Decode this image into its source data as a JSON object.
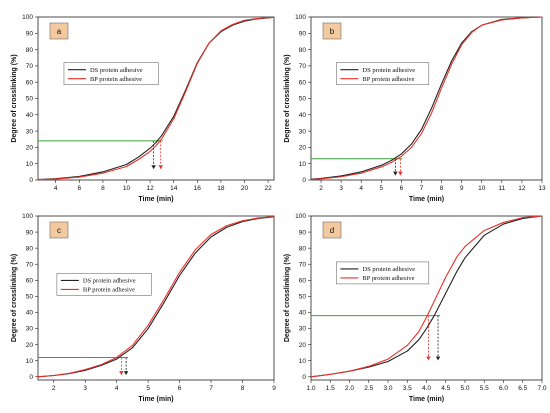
{
  "chart_data": [
    {
      "type": "line",
      "panel_label": "a",
      "xlabel": "Time  (min)",
      "ylabel": "Degree of crosslinking  (%)",
      "xlim": [
        2.5,
        22.5
      ],
      "ylim": [
        0,
        100
      ],
      "xticks": [
        4,
        6,
        8,
        10,
        12,
        14,
        16,
        18,
        20,
        22
      ],
      "yticks": [
        0,
        10,
        20,
        30,
        40,
        50,
        60,
        70,
        80,
        90,
        100
      ],
      "legend_position": "upper-left",
      "grid": false,
      "series": [
        {
          "name": "DS protein adhesive",
          "color": "#222222",
          "x": [
            2.5,
            4,
            6,
            8,
            10,
            11,
            12,
            12.5,
            13,
            14,
            15,
            16,
            17,
            18,
            19,
            20,
            21,
            22.5
          ],
          "y": [
            0.3,
            0.8,
            2.2,
            5.0,
            9.5,
            14,
            19.5,
            23,
            27.5,
            39,
            55,
            72,
            84,
            91,
            95,
            97.5,
            98.8,
            99.8
          ]
        },
        {
          "name": "BP protein adhesive",
          "color": "#e8302a",
          "x": [
            2.5,
            4,
            6,
            8,
            10,
            11,
            12,
            12.5,
            13,
            14,
            15,
            16,
            17,
            18,
            19,
            20,
            21,
            22.5
          ],
          "y": [
            0.2,
            0.6,
            1.8,
            4.2,
            8.3,
            12.5,
            17.5,
            21,
            25.5,
            37.5,
            54,
            71.5,
            84,
            91.5,
            95.5,
            98,
            99,
            99.8
          ]
        }
      ],
      "reference_y": 24,
      "markers": [
        {
          "x": 12.3,
          "color": "#222222"
        },
        {
          "x": 12.9,
          "color": "#e8302a"
        }
      ]
    },
    {
      "type": "line",
      "panel_label": "b",
      "xlabel": "Time  (min)",
      "ylabel": "Degree of crosslinking  (%)",
      "xlim": [
        1.5,
        13
      ],
      "ylim": [
        0,
        100
      ],
      "xticks": [
        2,
        3,
        4,
        5,
        6,
        7,
        8,
        9,
        10,
        11,
        12,
        13
      ],
      "yticks": [
        0,
        10,
        20,
        30,
        40,
        50,
        60,
        70,
        80,
        90,
        100
      ],
      "legend_position": "upper-left",
      "grid": false,
      "series": [
        {
          "name": "DS protein adhesive",
          "color": "#222222",
          "x": [
            1.5,
            2,
            3,
            4,
            5,
            5.5,
            6,
            6.5,
            7,
            7.5,
            8,
            8.5,
            9,
            9.5,
            10,
            11,
            12,
            13
          ],
          "y": [
            0.5,
            1,
            2.5,
            5,
            9,
            12,
            16,
            22,
            31,
            44,
            59,
            73,
            84,
            91,
            95,
            98.5,
            99.5,
            100
          ]
        },
        {
          "name": "BP protein adhesive",
          "color": "#e8302a",
          "x": [
            1.5,
            2,
            3,
            4,
            5,
            5.5,
            6,
            6.5,
            7,
            7.5,
            8,
            8.5,
            9,
            9.5,
            10,
            11,
            12,
            13
          ],
          "y": [
            0.3,
            0.7,
            2,
            4.2,
            8,
            10.8,
            14.5,
            20,
            28.5,
            41,
            56.5,
            71,
            83,
            90.5,
            95,
            98.2,
            99.4,
            100
          ]
        }
      ],
      "reference_y": 13,
      "markers": [
        {
          "x": 5.7,
          "color": "#222222"
        },
        {
          "x": 5.95,
          "color": "#e8302a"
        }
      ]
    },
    {
      "type": "line",
      "panel_label": "c",
      "xlabel": "Time  (min)",
      "ylabel": "Degree of crosslinking  (%)",
      "xlim": [
        1.5,
        9
      ],
      "ylim": [
        -2,
        100
      ],
      "xticks": [
        2,
        3,
        4,
        5,
        6,
        7,
        8,
        9
      ],
      "yticks": [
        0,
        10,
        20,
        30,
        40,
        50,
        60,
        70,
        80,
        90,
        100
      ],
      "legend_position": "center-left",
      "grid": false,
      "series": [
        {
          "name": "DS protein adhesive",
          "color": "#222222",
          "x": [
            1.5,
            2,
            2.5,
            3,
            3.5,
            4,
            4.5,
            5,
            5.5,
            6,
            6.5,
            7,
            7.5,
            8,
            8.5,
            9
          ],
          "y": [
            0,
            0.8,
            2,
            4,
            7,
            11,
            18,
            30,
            46,
            63,
            77,
            87,
            93,
            96.5,
            98.5,
            99.5
          ]
        },
        {
          "name": "BP protein adhesive",
          "color": "#e8302a",
          "x": [
            1.5,
            2,
            2.5,
            3,
            3.5,
            4,
            4.5,
            5,
            5.5,
            6,
            6.5,
            7,
            7.5,
            8,
            8.5,
            9
          ],
          "y": [
            0,
            0.8,
            2.2,
            4.5,
            7.5,
            12,
            19.5,
            32,
            48,
            65,
            79,
            88.5,
            94,
            97,
            98.8,
            99.6
          ]
        }
      ],
      "reference_y": 12,
      "markers": [
        {
          "x": 4.3,
          "color": "#222222"
        },
        {
          "x": 4.15,
          "color": "#e8302a"
        }
      ]
    },
    {
      "type": "line",
      "panel_label": "d",
      "xlabel": "Time  (min)",
      "ylabel": "Degree of crosslinking  (%)",
      "xlim": [
        1.0,
        7.0
      ],
      "ylim": [
        -2,
        100
      ],
      "xticks": [
        1.0,
        1.5,
        2.0,
        2.5,
        3.0,
        3.5,
        4.0,
        4.5,
        5.0,
        5.5,
        6.0,
        6.5,
        7.0
      ],
      "yticks": [
        0,
        10,
        20,
        30,
        40,
        50,
        60,
        70,
        80,
        90,
        100
      ],
      "legend_position": "upper-left",
      "grid": false,
      "series": [
        {
          "name": "DS protein adhesive",
          "color": "#222222",
          "x": [
            1.0,
            1.5,
            2.0,
            2.5,
            3.0,
            3.5,
            3.8,
            4.0,
            4.2,
            4.5,
            4.8,
            5.0,
            5.5,
            6.0,
            6.5,
            7.0
          ],
          "y": [
            0,
            1.5,
            3.5,
            6,
            9.5,
            16,
            23,
            30,
            38,
            52,
            66,
            74,
            88,
            95,
            98.5,
            100
          ]
        },
        {
          "name": "BP protein adhesive",
          "color": "#e8302a",
          "x": [
            1.0,
            1.5,
            2.0,
            2.5,
            3.0,
            3.5,
            3.8,
            4.0,
            4.2,
            4.5,
            4.8,
            5.0,
            5.5,
            6.0,
            6.5,
            7.0
          ],
          "y": [
            0,
            1.5,
            3.5,
            6.5,
            11,
            19.5,
            28,
            37,
            47,
            62,
            75,
            81,
            91,
            96,
            99,
            100
          ]
        }
      ],
      "reference_y": 38,
      "markers": [
        {
          "x": 4.05,
          "color": "#e8302a"
        },
        {
          "x": 4.3,
          "color": "#222222"
        }
      ]
    }
  ]
}
